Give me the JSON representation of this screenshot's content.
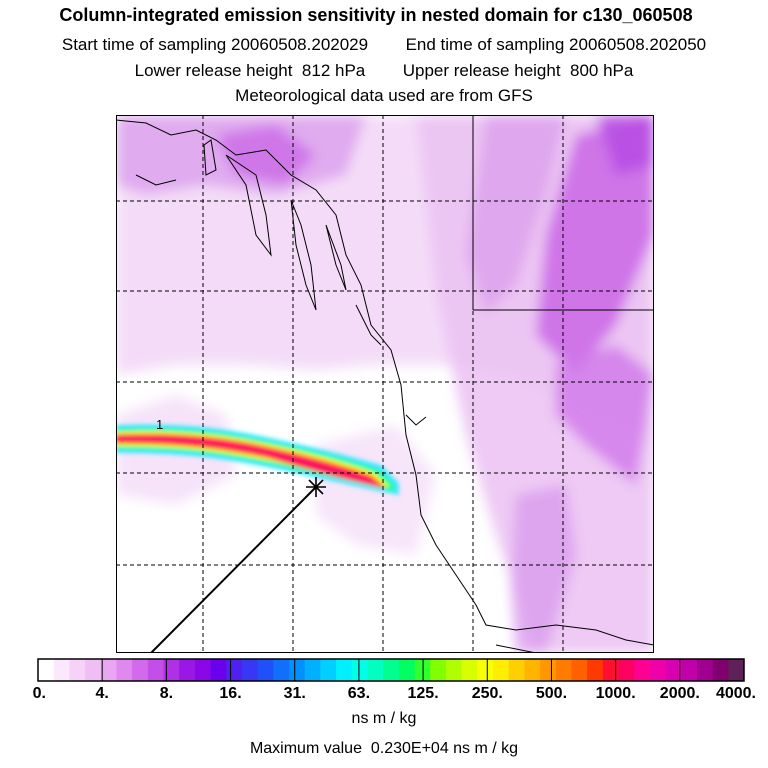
{
  "header": {
    "title": "Column-integrated emission sensitivity in nested domain for c130_060508",
    "start_label": "Start time of sampling",
    "start_value": "20060508.202029",
    "end_label": "End time of sampling",
    "end_value": "20060508.202050",
    "lower_label": "Lower release height",
    "lower_value": "812 hPa",
    "upper_label": "Upper release height",
    "upper_value": "800 hPa",
    "met_line": "Meteorological data used are from GFS"
  },
  "map": {
    "contour_label": "1",
    "plume_colors": [
      "#40e8ff",
      "#00ff90",
      "#ffff00",
      "#ff8800",
      "#ff1060",
      "#e0007a"
    ],
    "field_colors": [
      "#f4d8f8",
      "#eab8f2",
      "#d880ec",
      "#c44ee4"
    ]
  },
  "colorbar": {
    "colors": [
      "#ffffff",
      "#fbe8fc",
      "#f6d2f8",
      "#f0bef5",
      "#e9a6f2",
      "#df88ee",
      "#d36aec",
      "#c44ee8",
      "#b030e6",
      "#9a18e6",
      "#8a08e8",
      "#6a00ee",
      "#5020f0",
      "#3838f4",
      "#2050f8",
      "#1070fc",
      "#0090ff",
      "#00b0ff",
      "#00d0ff",
      "#00f0ff",
      "#00ffe8",
      "#00ffc0",
      "#00ff90",
      "#00ff60",
      "#30ff30",
      "#80ff00",
      "#b0ff00",
      "#d8ff00",
      "#f8ff00",
      "#ffee00",
      "#ffd000",
      "#ffb400",
      "#ff9800",
      "#ff7c00",
      "#ff6000",
      "#ff3a00",
      "#ff1030",
      "#ff0060",
      "#ff0090",
      "#f000a8",
      "#d800b0",
      "#c000a8",
      "#a00090",
      "#800070",
      "#602058"
    ],
    "tick_labels": [
      "0.",
      "4.",
      "8.",
      "16.",
      "31.",
      "63.",
      "125.",
      "250.",
      "500.",
      "1000.",
      "2000.",
      "4000."
    ],
    "units": "ns m / kg",
    "max_label": "Maximum value",
    "max_value": "0.230E+04 ns m / kg"
  }
}
